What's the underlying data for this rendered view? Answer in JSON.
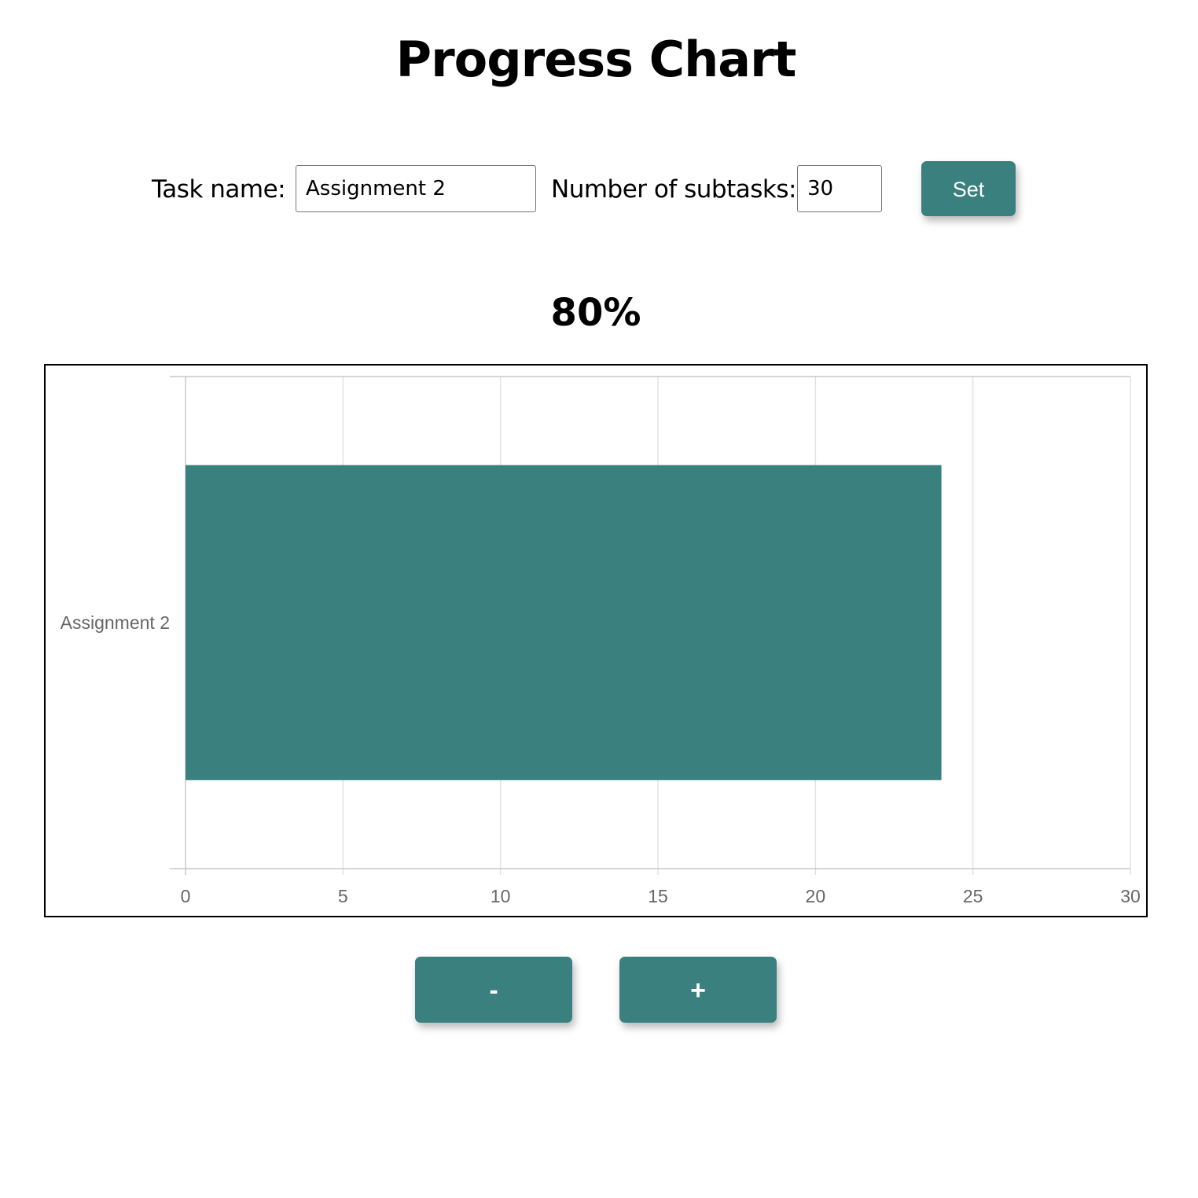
{
  "title": "Progress Chart",
  "form": {
    "task_label": "Task name:",
    "task_value": "Assignment 2",
    "subtasks_label": "Number of subtasks:",
    "subtasks_value": "30",
    "set_label": "Set"
  },
  "progress": {
    "percent_text": "80%"
  },
  "controls": {
    "minus_label": "-",
    "plus_label": "+"
  },
  "colors": {
    "accent": "#3a807e",
    "grid": "#e3e3e3",
    "axis": "#c8c8c8",
    "tick_text": "#666666"
  },
  "chart_data": {
    "type": "bar",
    "orientation": "horizontal",
    "categories": [
      "Assignment 2"
    ],
    "values": [
      24
    ],
    "xlim": [
      0,
      30
    ],
    "xticks": [
      0,
      5,
      10,
      15,
      20,
      25,
      30
    ],
    "grid": true,
    "legend": "none",
    "title": "",
    "xlabel": "",
    "ylabel": ""
  }
}
